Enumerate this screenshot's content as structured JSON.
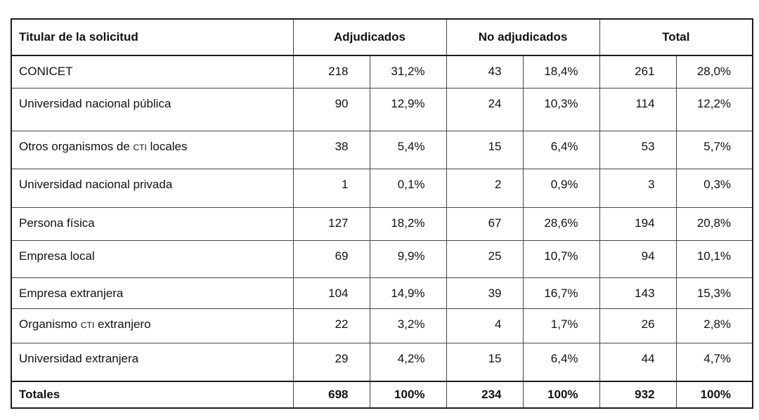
{
  "headers": {
    "col1": "Titular de la solicitud",
    "group1": "Adjudicados",
    "group2": "No adjudicados",
    "group3": "Total"
  },
  "rows": [
    {
      "label": "CONICET",
      "a_n": "218",
      "a_p": "31,2%",
      "n_n": "43",
      "n_p": "18,4%",
      "t_n": "261",
      "t_p": "28,0%"
    },
    {
      "label": "Universidad nacional pública",
      "a_n": "90",
      "a_p": "12,9%",
      "n_n": "24",
      "n_p": "10,3%",
      "t_n": "114",
      "t_p": "12,2%"
    },
    {
      "label": "Otros organismos de CTI locales",
      "a_n": "38",
      "a_p": "5,4%",
      "n_n": "15",
      "n_p": "6,4%",
      "t_n": "53",
      "t_p": "5,7%"
    },
    {
      "label": "Universidad nacional privada",
      "a_n": "1",
      "a_p": "0,1%",
      "n_n": "2",
      "n_p": "0,9%",
      "t_n": "3",
      "t_p": "0,3%"
    },
    {
      "label": "Persona física",
      "a_n": "127",
      "a_p": "18,2%",
      "n_n": "67",
      "n_p": "28,6%",
      "t_n": "194",
      "t_p": "20,8%"
    },
    {
      "label": "Empresa local",
      "a_n": "69",
      "a_p": "9,9%",
      "n_n": "25",
      "n_p": "10,7%",
      "t_n": "94",
      "t_p": "10,1%"
    },
    {
      "label": "Empresa extranjera",
      "a_n": "104",
      "a_p": "14,9%",
      "n_n": "39",
      "n_p": "16,7%",
      "t_n": "143",
      "t_p": "15,3%"
    },
    {
      "label": "Organismo CTI extranjero",
      "a_n": "22",
      "a_p": "3,2%",
      "n_n": "4",
      "n_p": "1,7%",
      "t_n": "26",
      "t_p": "2,8%"
    },
    {
      "label": "Universidad extranjera",
      "a_n": "29",
      "a_p": "4,2%",
      "n_n": "15",
      "n_p": "6,4%",
      "t_n": "44",
      "t_p": "4,7%"
    }
  ],
  "totals": {
    "label": "Totales",
    "a_n": "698",
    "a_p": "100%",
    "n_n": "234",
    "n_p": "100%",
    "t_n": "932",
    "t_p": "100%"
  }
}
